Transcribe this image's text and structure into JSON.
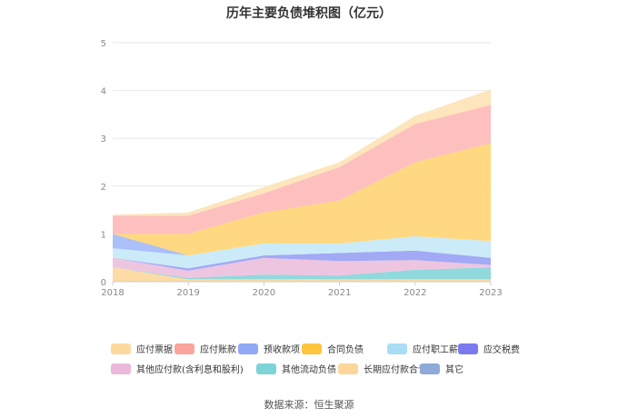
{
  "chart_data": {
    "type": "area",
    "stacked": true,
    "title": "历年主要负债堆积图（亿元）",
    "x": [
      "2018",
      "2019",
      "2020",
      "2021",
      "2022",
      "2023"
    ],
    "y_ticks": [
      "0",
      "1",
      "2",
      "3",
      "4",
      "5"
    ],
    "ylim": [
      0,
      5
    ],
    "grid": true,
    "legend_position": "bottom",
    "series": [
      {
        "name": "应付票据",
        "color": "#FDD9A0",
        "values": [
          0.3,
          0.05,
          0.05,
          0.05,
          0.05,
          0.05
        ]
      },
      {
        "name": "其他流动负债",
        "color": "#8AD7DB",
        "values": [
          0.0,
          0.03,
          0.1,
          0.08,
          0.2,
          0.25
        ]
      },
      {
        "name": "其他应付款(含利息和股利)",
        "color": "#EDC2DE",
        "values": [
          0.2,
          0.15,
          0.35,
          0.3,
          0.2,
          0.05
        ]
      },
      {
        "name": "应交税费",
        "color": "#9DA4F4",
        "values": [
          0.0,
          0.05,
          0.05,
          0.17,
          0.2,
          0.15
        ]
      },
      {
        "name": "应付职工薪酬",
        "color": "#C8EAF8",
        "values": [
          0.2,
          0.27,
          0.25,
          0.2,
          0.3,
          0.35
        ]
      },
      {
        "name": "预收款项",
        "color": "#A7BDF8",
        "values": [
          0.3,
          0.0,
          0.0,
          0.0,
          0.0,
          0.0
        ]
      },
      {
        "name": "合同负债",
        "color": "#FFD67A",
        "values": [
          0.0,
          0.45,
          0.65,
          0.9,
          1.55,
          2.05
        ]
      },
      {
        "name": "应付账款",
        "color": "#FDBDBA",
        "values": [
          0.38,
          0.38,
          0.4,
          0.7,
          0.8,
          0.8
        ]
      },
      {
        "name": "长期应付款合计",
        "color": "#FDE4B8",
        "values": [
          0.02,
          0.07,
          0.13,
          0.1,
          0.17,
          0.32
        ]
      }
    ]
  },
  "legend": [
    {
      "label": "应付票据",
      "color": "#FDD9A0"
    },
    {
      "label": "应付账款",
      "color": "#FAA49C"
    },
    {
      "label": "预收款项",
      "color": "#8FA9F7"
    },
    {
      "label": "合同负债",
      "color": "#FFC53D"
    },
    {
      "label": "应付职工薪酬",
      "color": "#A9DDF5"
    },
    {
      "label": "应交税费",
      "color": "#7A7AEE"
    },
    {
      "label": "其他应付款(含利息和股利)",
      "color": "#EBB7DA"
    },
    {
      "label": "其他流动负债",
      "color": "#7ED3D6"
    },
    {
      "label": "长期应付款合计",
      "color": "#FDD79A"
    },
    {
      "label": "其它",
      "color": "#8FA9D8"
    }
  ],
  "footer": "数据来源：恒生聚源"
}
